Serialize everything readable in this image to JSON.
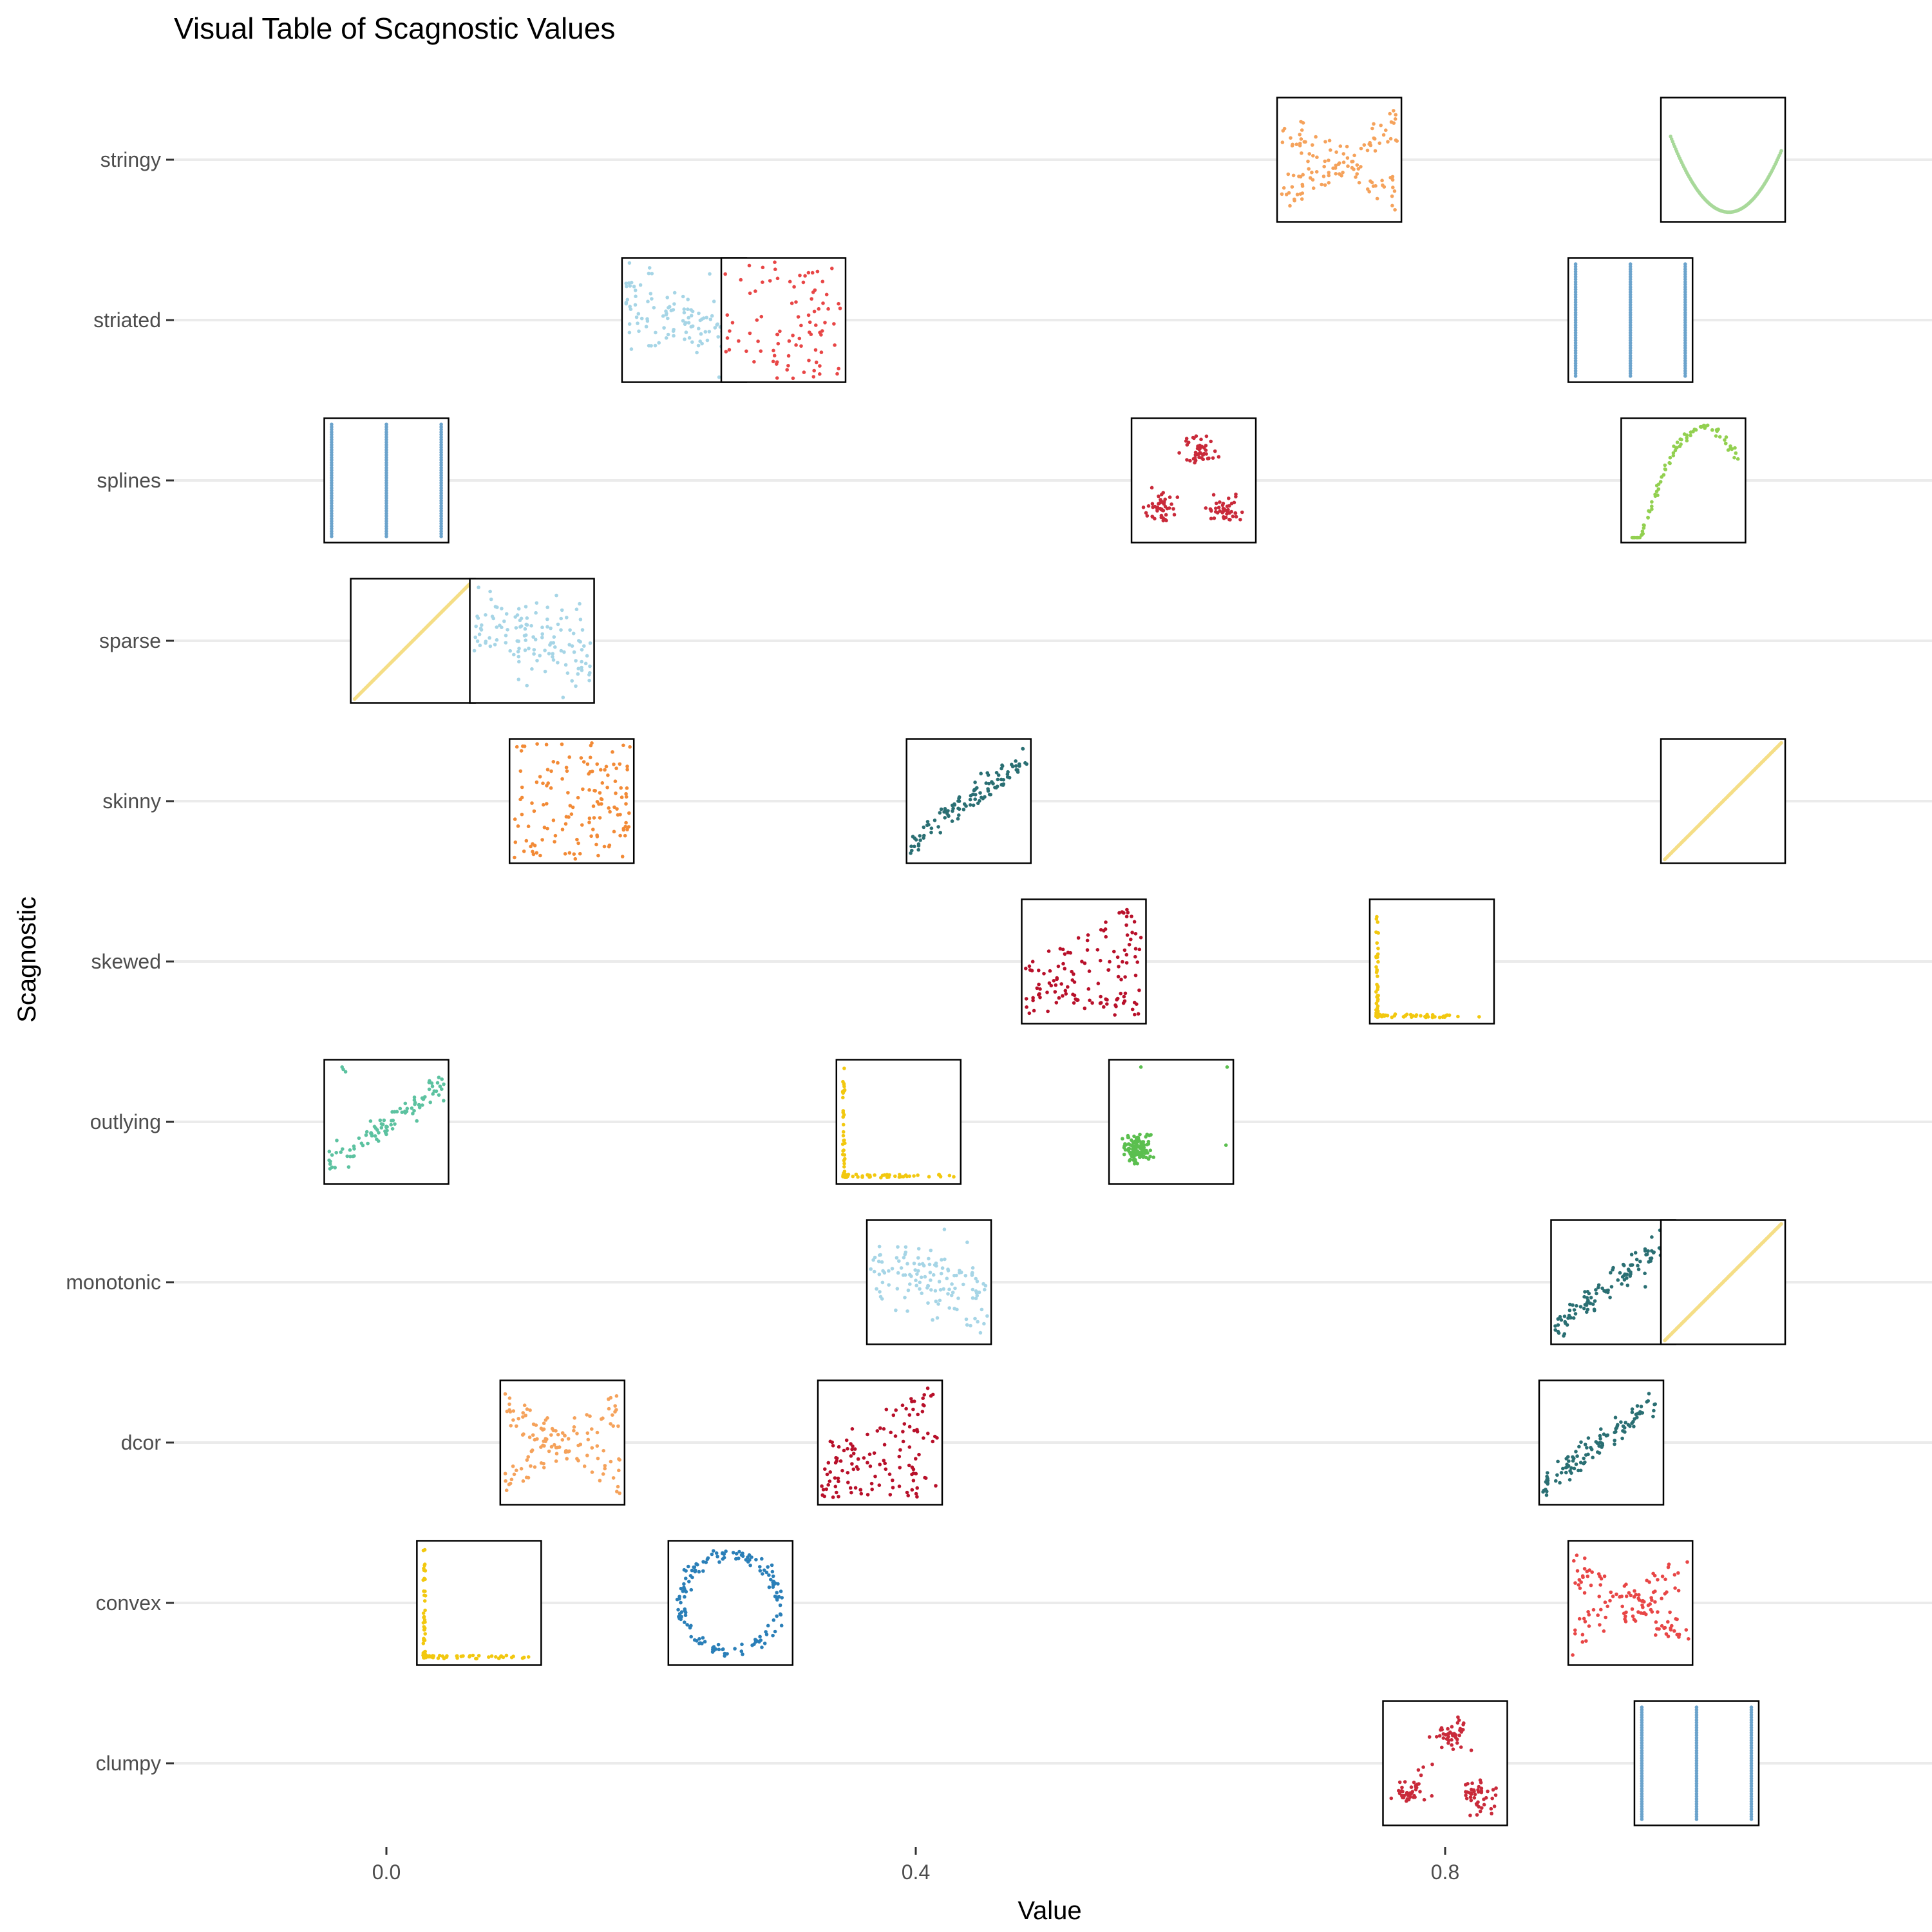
{
  "chart_data": {
    "type": "scatter",
    "title": "Visual Table of Scagnostic Values",
    "xlabel": "Value",
    "ylabel": "Scagnostic",
    "xlim": [
      -0.18,
      1.16
    ],
    "x_ticks": [
      0.0,
      0.4,
      0.8
    ],
    "x_tick_labels": [
      "0.0",
      "0.4",
      "0.8"
    ],
    "grid": "horizontal major",
    "legend": "none",
    "categories": [
      "stringy",
      "striated",
      "splines",
      "sparse",
      "skinny",
      "skewed",
      "outlying",
      "monotonic",
      "dcor",
      "convex",
      "clumpy"
    ],
    "points": [
      {
        "scagnostic": "stringy",
        "value": 0.72,
        "pattern": "cross",
        "color": "#f5a25b"
      },
      {
        "scagnostic": "stringy",
        "value": 1.01,
        "pattern": "quadratic",
        "color": "#a8d99a"
      },
      {
        "scagnostic": "striated",
        "value": 0.225,
        "pattern": "noise",
        "color": "#a6d5e6"
      },
      {
        "scagnostic": "striated",
        "value": 0.3,
        "pattern": "noisered",
        "color": "#e84646"
      },
      {
        "scagnostic": "striated",
        "value": 0.94,
        "pattern": "stripes",
        "color": "#6ba3cc"
      },
      {
        "scagnostic": "splines",
        "value": 0.0,
        "pattern": "stripes",
        "color": "#6ba3cc"
      },
      {
        "scagnostic": "splines",
        "value": 0.61,
        "pattern": "clusters",
        "color": "#c92a3a"
      },
      {
        "scagnostic": "splines",
        "value": 0.98,
        "pattern": "arc",
        "color": "#92d050"
      },
      {
        "scagnostic": "sparse",
        "value": 0.02,
        "pattern": "line",
        "color": "#f5de86"
      },
      {
        "scagnostic": "sparse",
        "value": 0.11,
        "pattern": "noise",
        "color": "#a6d5e6"
      },
      {
        "scagnostic": "skinny",
        "value": 0.14,
        "pattern": "noiseorange",
        "color": "#f28a36"
      },
      {
        "scagnostic": "skinny",
        "value": 0.44,
        "pattern": "linear",
        "color": "#2a6f73"
      },
      {
        "scagnostic": "skinny",
        "value": 1.01,
        "pattern": "line",
        "color": "#f5de86"
      },
      {
        "scagnostic": "skewed",
        "value": 0.527,
        "pattern": "heteroscedastic",
        "color": "#b8102a"
      },
      {
        "scagnostic": "skewed",
        "value": 0.79,
        "pattern": "lshape",
        "color": "#f2c80f"
      },
      {
        "scagnostic": "outlying",
        "value": 0.0,
        "pattern": "linearoutlier",
        "color": "#5cc2a0"
      },
      {
        "scagnostic": "outlying",
        "value": 0.387,
        "pattern": "lshape",
        "color": "#f2c80f"
      },
      {
        "scagnostic": "outlying",
        "value": 0.593,
        "pattern": "blob",
        "color": "#5bbf4f"
      },
      {
        "scagnostic": "monotonic",
        "value": 0.41,
        "pattern": "noise",
        "color": "#a6d5e6"
      },
      {
        "scagnostic": "monotonic",
        "value": 0.927,
        "pattern": "linear",
        "color": "#2a6f73"
      },
      {
        "scagnostic": "monotonic",
        "value": 1.01,
        "pattern": "line",
        "color": "#f5de86"
      },
      {
        "scagnostic": "dcor",
        "value": 0.133,
        "pattern": "cross",
        "color": "#f5a25b"
      },
      {
        "scagnostic": "dcor",
        "value": 0.373,
        "pattern": "heteroscedastic",
        "color": "#b8102a"
      },
      {
        "scagnostic": "dcor",
        "value": 0.918,
        "pattern": "linear",
        "color": "#2a6f73"
      },
      {
        "scagnostic": "convex",
        "value": 0.07,
        "pattern": "lshape",
        "color": "#f2c80f"
      },
      {
        "scagnostic": "convex",
        "value": 0.26,
        "pattern": "ring",
        "color": "#2a7fb8"
      },
      {
        "scagnostic": "convex",
        "value": 0.94,
        "pattern": "cross",
        "color": "#e84646"
      },
      {
        "scagnostic": "clumpy",
        "value": 0.8,
        "pattern": "clusters",
        "color": "#c92a3a"
      },
      {
        "scagnostic": "clumpy",
        "value": 0.99,
        "pattern": "stripes",
        "color": "#6ba3cc"
      }
    ]
  }
}
